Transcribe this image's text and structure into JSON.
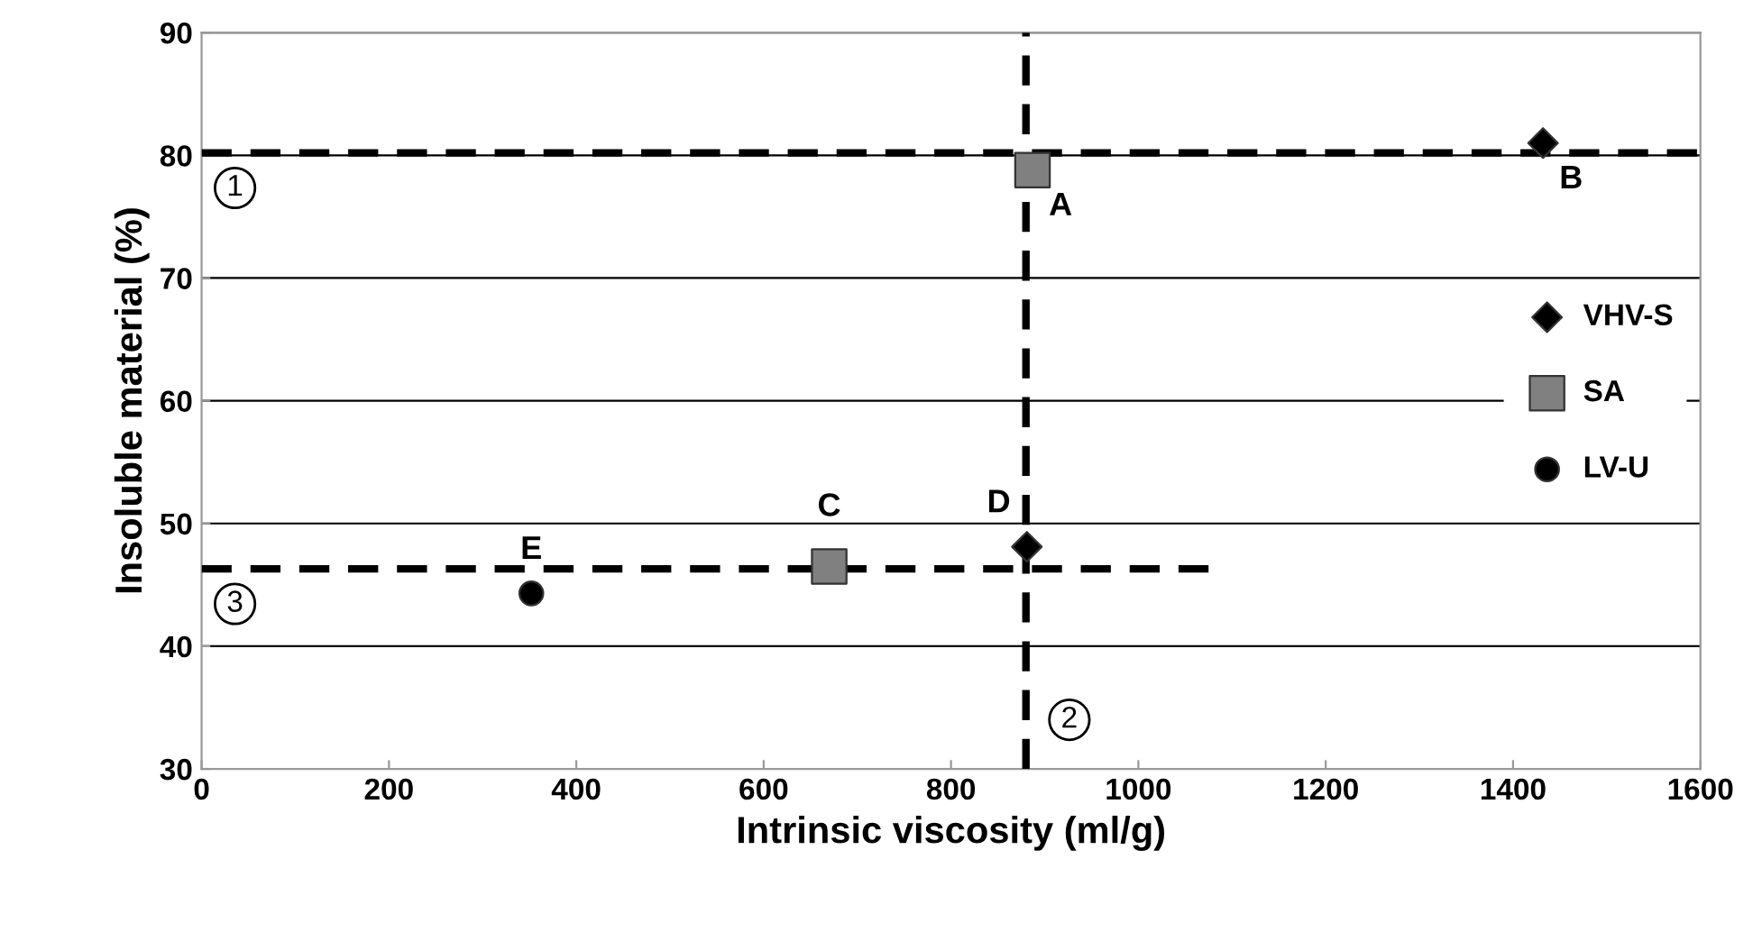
{
  "chart_data": {
    "type": "scatter",
    "xlabel": "Intrinsic viscosity (ml/g)",
    "ylabel": "Insoluble material (%)",
    "xlim": [
      0,
      1600
    ],
    "xticks": [
      0,
      200,
      400,
      600,
      800,
      1000,
      1200,
      1400,
      1600
    ],
    "ylim": [
      30,
      90
    ],
    "yticks": [
      30,
      40,
      50,
      60,
      70,
      80,
      90
    ],
    "grid": "y",
    "legend": "right",
    "series": [
      {
        "name": "VHV-S",
        "color": "#000000",
        "marker": "diamond",
        "x": [
          1432,
          881
        ],
        "values": [
          81,
          48.1
        ]
      },
      {
        "name": "SA",
        "color": "#808080",
        "marker": "square",
        "x": [
          887,
          670
        ],
        "values": [
          78.8,
          46.5
        ]
      },
      {
        "name": "LV-U",
        "color": "#000000",
        "marker": "circle",
        "x": [
          352
        ],
        "values": [
          44.3
        ]
      },
      {
        "type": "line",
        "color": "#000000",
        "line_style": "dashed",
        "marker": "none",
        "x": [
          0,
          1082
        ],
        "values": [
          46.3,
          46.3
        ]
      }
    ],
    "ref_lines": [
      {
        "axis": "y",
        "value": 80.2,
        "color": "#000000",
        "line_style": "dashed"
      },
      {
        "axis": "x",
        "value": 880,
        "color": "#000000",
        "line_style": "dashed"
      }
    ],
    "annotations": [
      {
        "text": "A",
        "x": 887,
        "y": 78.8
      },
      {
        "text": "B",
        "x": 1432,
        "y": 81
      },
      {
        "text": "C",
        "x": 670,
        "y": 46.5
      },
      {
        "text": "D",
        "x": 881,
        "y": 48.1
      },
      {
        "text": "E",
        "x": 352,
        "y": 44.3
      },
      {
        "text": "1",
        "x": 0,
        "y": 80.2
      },
      {
        "text": "2",
        "x": 880,
        "y": 34
      },
      {
        "text": "3",
        "x": 0,
        "y": 46.3
      }
    ]
  }
}
